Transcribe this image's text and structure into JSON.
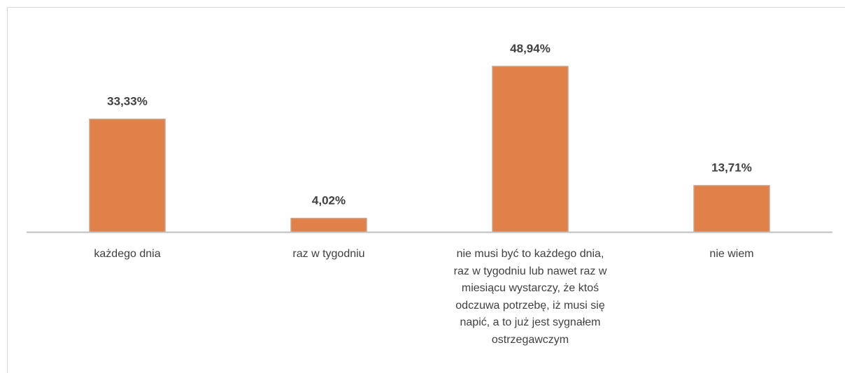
{
  "chart_data": {
    "type": "bar",
    "categories": [
      "każdego dnia",
      "raz w tygodniu",
      "nie musi być to każdego dnia, raz w tygodniu lub nawet raz w miesiącu wystarczy, że ktoś odczuwa potrzebę, iż musi się napić, a to już jest sygnałem ostrzegawczym",
      "nie wiem"
    ],
    "values": [
      33.33,
      4.02,
      48.94,
      13.71
    ],
    "value_labels": [
      "33,33%",
      "4,02%",
      "48,94%",
      "13,71%"
    ],
    "color": "#e0814a"
  }
}
